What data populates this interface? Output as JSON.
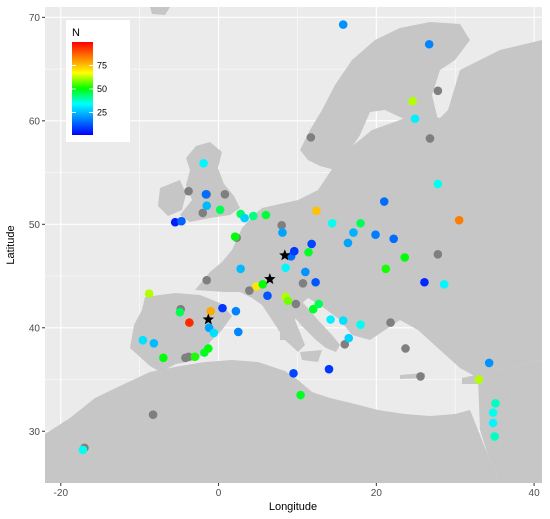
{
  "chart_data": {
    "type": "scatter",
    "title": "",
    "xlabel": "Longitude",
    "ylabel": "Latitude",
    "xlim": [
      -22,
      41
    ],
    "ylim": [
      25,
      71
    ],
    "x_ticks": [
      -20,
      0,
      20,
      40
    ],
    "y_ticks": [
      30,
      40,
      50,
      60,
      70
    ],
    "grid": true,
    "legend": {
      "title": "N",
      "position": "top-left",
      "ticks": [
        25,
        50,
        75
      ],
      "range": [
        1,
        100
      ]
    },
    "colors": {
      "panel": "#ebebeb",
      "land": "#c6c6c6",
      "grid": "#ffffff",
      "missing": "#7f7f7f",
      "star": "#000000"
    },
    "gradient": [
      "#0000ff",
      "#0080ff",
      "#00ffff",
      "#00ff00",
      "#ffff00",
      "#ff8000",
      "#ff0000"
    ],
    "missing_points": [
      {
        "lon": -17,
        "lat": 28.4
      },
      {
        "lon": -8.3,
        "lat": 31.6
      },
      {
        "lon": -3.8,
        "lat": 53.2
      },
      {
        "lon": -1.5,
        "lat": 52.9
      },
      {
        "lon": -2.0,
        "lat": 51.1
      },
      {
        "lon": -1.5,
        "lat": 44.6
      },
      {
        "lon": 3.9,
        "lat": 43.6
      },
      {
        "lon": -4.8,
        "lat": 41.8
      },
      {
        "lon": -3.8,
        "lat": 37.2
      },
      {
        "lon": -4.2,
        "lat": 37.1
      },
      {
        "lon": 0.8,
        "lat": 52.9
      },
      {
        "lon": 2.3,
        "lat": 48.7
      },
      {
        "lon": 8.0,
        "lat": 49.9
      },
      {
        "lon": 9.8,
        "lat": 42.3
      },
      {
        "lon": 10.7,
        "lat": 44.3
      },
      {
        "lon": 16.0,
        "lat": 38.4
      },
      {
        "lon": 21.8,
        "lat": 40.5
      },
      {
        "lon": 23.7,
        "lat": 38.0
      },
      {
        "lon": 25.6,
        "lat": 35.3
      },
      {
        "lon": 11.7,
        "lat": 58.4
      },
      {
        "lon": 27.8,
        "lat": 62.9
      },
      {
        "lon": 26.8,
        "lat": 58.3
      },
      {
        "lon": 27.8,
        "lat": 47.1
      }
    ],
    "points": [
      {
        "lon": 15.8,
        "lat": 69.3,
        "n": 20
      },
      {
        "lon": 26.7,
        "lat": 67.4,
        "n": 18
      },
      {
        "lon": 24.6,
        "lat": 61.9,
        "n": 62
      },
      {
        "lon": 24.9,
        "lat": 60.2,
        "n": 32
      },
      {
        "lon": 27.8,
        "lat": 53.9,
        "n": 35
      },
      {
        "lon": 30.5,
        "lat": 50.4,
        "n": 84
      },
      {
        "lon": 21.0,
        "lat": 52.2,
        "n": 15
      },
      {
        "lon": 12.4,
        "lat": 51.3,
        "n": 75
      },
      {
        "lon": 14.4,
        "lat": 50.1,
        "n": 35
      },
      {
        "lon": 17.1,
        "lat": 49.2,
        "n": 24
      },
      {
        "lon": 16.4,
        "lat": 48.2,
        "n": 22
      },
      {
        "lon": 19.9,
        "lat": 49.0,
        "n": 17
      },
      {
        "lon": 22.2,
        "lat": 48.6,
        "n": 15
      },
      {
        "lon": 21.2,
        "lat": 45.7,
        "n": 52
      },
      {
        "lon": 23.6,
        "lat": 46.8,
        "n": 50
      },
      {
        "lon": 26.1,
        "lat": 44.4,
        "n": 6
      },
      {
        "lon": 28.6,
        "lat": 44.2,
        "n": 33
      },
      {
        "lon": 18.0,
        "lat": 50.1,
        "n": 45
      },
      {
        "lon": 11.4,
        "lat": 47.3,
        "n": 48
      },
      {
        "lon": 11.8,
        "lat": 48.1,
        "n": 10
      },
      {
        "lon": 11.0,
        "lat": 45.4,
        "n": 20
      },
      {
        "lon": 8.5,
        "lat": 45.8,
        "n": 33
      },
      {
        "lon": 9.2,
        "lat": 46.9,
        "n": 15
      },
      {
        "lon": 8.1,
        "lat": 49.2,
        "n": 22
      },
      {
        "lon": 9.6,
        "lat": 47.4,
        "n": 8
      },
      {
        "lon": 12.3,
        "lat": 44.4,
        "n": 12
      },
      {
        "lon": 6.0,
        "lat": 50.9,
        "n": 47
      },
      {
        "lon": 4.4,
        "lat": 50.8,
        "n": 42
      },
      {
        "lon": 2.8,
        "lat": 51.0,
        "n": 44
      },
      {
        "lon": 3.3,
        "lat": 50.6,
        "n": 28
      },
      {
        "lon": 0.2,
        "lat": 51.4,
        "n": 45
      },
      {
        "lon": -1.5,
        "lat": 51.8,
        "n": 25
      },
      {
        "lon": -1.6,
        "lat": 52.9,
        "n": 15
      },
      {
        "lon": -1.9,
        "lat": 55.9,
        "n": 33
      },
      {
        "lon": -5.5,
        "lat": 50.2,
        "n": 5
      },
      {
        "lon": -4.7,
        "lat": 50.3,
        "n": 14
      },
      {
        "lon": 2.1,
        "lat": 48.8,
        "n": 50
      },
      {
        "lon": 2.8,
        "lat": 45.7,
        "n": 25
      },
      {
        "lon": 4.8,
        "lat": 44.0,
        "n": 70
      },
      {
        "lon": 5.6,
        "lat": 44.2,
        "n": 50
      },
      {
        "lon": 6.2,
        "lat": 43.1,
        "n": 12
      },
      {
        "lon": 2.2,
        "lat": 41.6,
        "n": 18
      },
      {
        "lon": 0.5,
        "lat": 41.9,
        "n": 8
      },
      {
        "lon": -1.0,
        "lat": 41.6,
        "n": 78
      },
      {
        "lon": -1.2,
        "lat": 40.0,
        "n": 22
      },
      {
        "lon": -0.6,
        "lat": 39.5,
        "n": 30
      },
      {
        "lon": -3.7,
        "lat": 40.5,
        "n": 95
      },
      {
        "lon": -4.9,
        "lat": 41.5,
        "n": 45
      },
      {
        "lon": -8.8,
        "lat": 43.3,
        "n": 62
      },
      {
        "lon": -9.6,
        "lat": 38.8,
        "n": 30
      },
      {
        "lon": -8.2,
        "lat": 38.5,
        "n": 25
      },
      {
        "lon": -7.0,
        "lat": 37.1,
        "n": 50
      },
      {
        "lon": -3.0,
        "lat": 37.2,
        "n": 52
      },
      {
        "lon": -1.8,
        "lat": 37.6,
        "n": 48
      },
      {
        "lon": -1.3,
        "lat": 38.0,
        "n": 50
      },
      {
        "lon": 2.5,
        "lat": 39.6,
        "n": 18
      },
      {
        "lon": 8.5,
        "lat": 43.0,
        "n": 62
      },
      {
        "lon": 8.8,
        "lat": 42.6,
        "n": 58
      },
      {
        "lon": 12.0,
        "lat": 41.8,
        "n": 48
      },
      {
        "lon": 12.7,
        "lat": 42.3,
        "n": 45
      },
      {
        "lon": 14.2,
        "lat": 40.8,
        "n": 32
      },
      {
        "lon": 15.8,
        "lat": 40.7,
        "n": 30
      },
      {
        "lon": 18.0,
        "lat": 40.3,
        "n": 35
      },
      {
        "lon": 16.5,
        "lat": 39.0,
        "n": 28
      },
      {
        "lon": 14.0,
        "lat": 36.0,
        "n": 8
      },
      {
        "lon": 9.5,
        "lat": 35.6,
        "n": 10
      },
      {
        "lon": 10.4,
        "lat": 33.5,
        "n": 48
      },
      {
        "lon": 33.0,
        "lat": 35.0,
        "n": 62
      },
      {
        "lon": 34.3,
        "lat": 36.6,
        "n": 20
      },
      {
        "lon": 35.1,
        "lat": 32.7,
        "n": 38
      },
      {
        "lon": 34.8,
        "lat": 31.8,
        "n": 35
      },
      {
        "lon": 34.8,
        "lat": 30.8,
        "n": 33
      },
      {
        "lon": 35.0,
        "lat": 29.5,
        "n": 38
      },
      {
        "lon": -17.2,
        "lat": 28.2,
        "n": 35
      }
    ],
    "star_points": [
      {
        "lon": 6.5,
        "lat": 44.7
      },
      {
        "lon": 8.4,
        "lat": 47.0
      },
      {
        "lon": -1.3,
        "lat": 40.8
      }
    ]
  }
}
